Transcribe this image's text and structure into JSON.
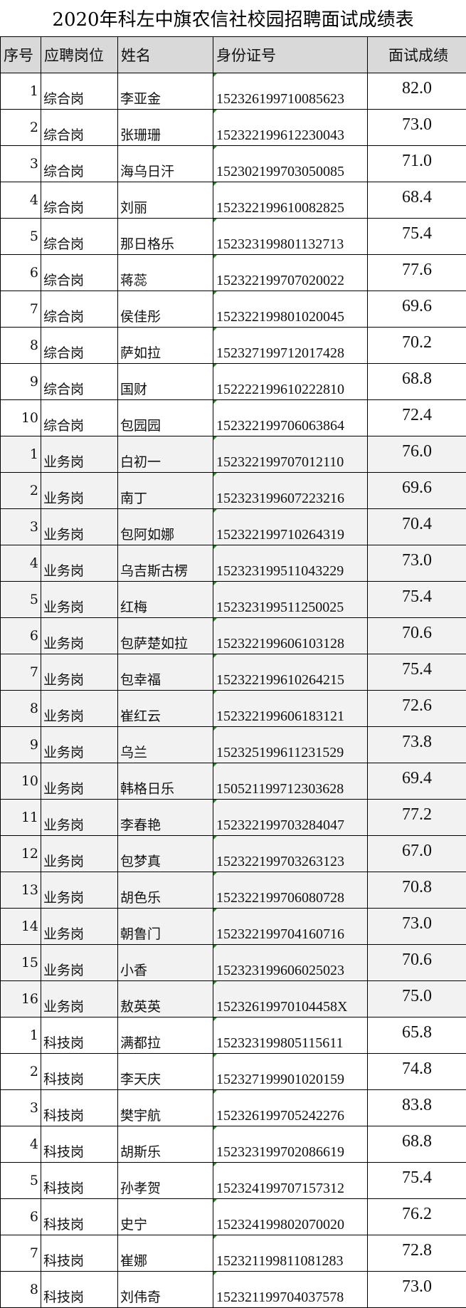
{
  "title": "2020年科左中旗农信社校园招聘面试成绩表",
  "headers": {
    "no": "序号",
    "position": "应聘岗位",
    "name": "姓名",
    "id": "身份证号",
    "score": "面试成绩"
  },
  "colors": {
    "header_bg": "#d9d9d9",
    "alt_row_bg": "#f2f2f2",
    "error_marker": "#1a8a1a"
  },
  "rows": [
    {
      "no": "1",
      "position": "综合岗",
      "name": "李亚金",
      "id": "152326199710085623",
      "score": "82.0"
    },
    {
      "no": "2",
      "position": "综合岗",
      "name": "张珊珊",
      "id": "152322199612230043",
      "score": "73.0"
    },
    {
      "no": "3",
      "position": "综合岗",
      "name": "海乌日汗",
      "id": "152302199703050085",
      "score": "71.0"
    },
    {
      "no": "4",
      "position": "综合岗",
      "name": "刘丽",
      "id": "152322199610082825",
      "score": "68.4"
    },
    {
      "no": "5",
      "position": "综合岗",
      "name": "那日格乐",
      "id": "152323199801132713",
      "score": "75.4"
    },
    {
      "no": "6",
      "position": "综合岗",
      "name": "蒋蕊",
      "id": "152322199707020022",
      "score": "77.6"
    },
    {
      "no": "7",
      "position": "综合岗",
      "name": "侯佳彤",
      "id": "152322199801020045",
      "score": "69.6"
    },
    {
      "no": "8",
      "position": "综合岗",
      "name": "萨如拉",
      "id": "152327199712017428",
      "score": "70.2"
    },
    {
      "no": "9",
      "position": "综合岗",
      "name": "国财",
      "id": "152222199610222810",
      "score": "68.8"
    },
    {
      "no": "10",
      "position": "综合岗",
      "name": "包园园",
      "id": "152322199706063864",
      "score": "72.4"
    },
    {
      "no": "1",
      "position": "业务岗",
      "name": "白初一",
      "id": "152322199707012110",
      "score": "76.0"
    },
    {
      "no": "2",
      "position": "业务岗",
      "name": "南丁",
      "id": "152323199607223216",
      "score": "69.6"
    },
    {
      "no": "3",
      "position": "业务岗",
      "name": "包阿如娜",
      "id": "152322199710264319",
      "score": "70.4"
    },
    {
      "no": "4",
      "position": "业务岗",
      "name": "乌吉斯古楞",
      "id": "152323199511043229",
      "score": "73.0"
    },
    {
      "no": "5",
      "position": "业务岗",
      "name": "红梅",
      "id": "152323199511250025",
      "score": "75.4"
    },
    {
      "no": "6",
      "position": "业务岗",
      "name": "包萨楚如拉",
      "id": "152322199606103128",
      "score": "70.6"
    },
    {
      "no": "7",
      "position": "业务岗",
      "name": "包幸福",
      "id": "152322199610264215",
      "score": "75.4"
    },
    {
      "no": "8",
      "position": "业务岗",
      "name": "崔红云",
      "id": "152322199606183121",
      "score": "72.6"
    },
    {
      "no": "9",
      "position": "业务岗",
      "name": "乌兰",
      "id": "152325199611231529",
      "score": "73.8"
    },
    {
      "no": "10",
      "position": "业务岗",
      "name": "韩格日乐",
      "id": "150521199712303628",
      "score": "69.4"
    },
    {
      "no": "11",
      "position": "业务岗",
      "name": "李春艳",
      "id": "152322199703284047",
      "score": "77.2"
    },
    {
      "no": "12",
      "position": "业务岗",
      "name": "包梦真",
      "id": "152322199703263123",
      "score": "67.0"
    },
    {
      "no": "13",
      "position": "业务岗",
      "name": "胡色乐",
      "id": "152322199706080728",
      "score": "70.8"
    },
    {
      "no": "14",
      "position": "业务岗",
      "name": "朝鲁门",
      "id": "152322199704160716",
      "score": "73.0"
    },
    {
      "no": "15",
      "position": "业务岗",
      "name": "小香",
      "id": "152323199606025023",
      "score": "70.6"
    },
    {
      "no": "16",
      "position": "业务岗",
      "name": "敖英英",
      "id": "15232619970104458X",
      "score": "75.0"
    },
    {
      "no": "1",
      "position": "科技岗",
      "name": "满都拉",
      "id": "152323199805115611",
      "score": "65.8"
    },
    {
      "no": "2",
      "position": "科技岗",
      "name": "李天庆",
      "id": "152327199901020159",
      "score": "74.8"
    },
    {
      "no": "3",
      "position": "科技岗",
      "name": "樊宇航",
      "id": "152326199705242276",
      "score": "83.8"
    },
    {
      "no": "4",
      "position": "科技岗",
      "name": "胡斯乐",
      "id": "152323199702086619",
      "score": "68.8"
    },
    {
      "no": "5",
      "position": "科技岗",
      "name": "孙孝贺",
      "id": "152324199707157312",
      "score": "75.4"
    },
    {
      "no": "6",
      "position": "科技岗",
      "name": "史宁",
      "id": "152324199802070020",
      "score": "76.2"
    },
    {
      "no": "7",
      "position": "科技岗",
      "name": "崔娜",
      "id": "152321199811081283",
      "score": "72.8"
    },
    {
      "no": "8",
      "position": "科技岗",
      "name": "刘伟奇",
      "id": "152321199704037578",
      "score": "73.0"
    }
  ]
}
